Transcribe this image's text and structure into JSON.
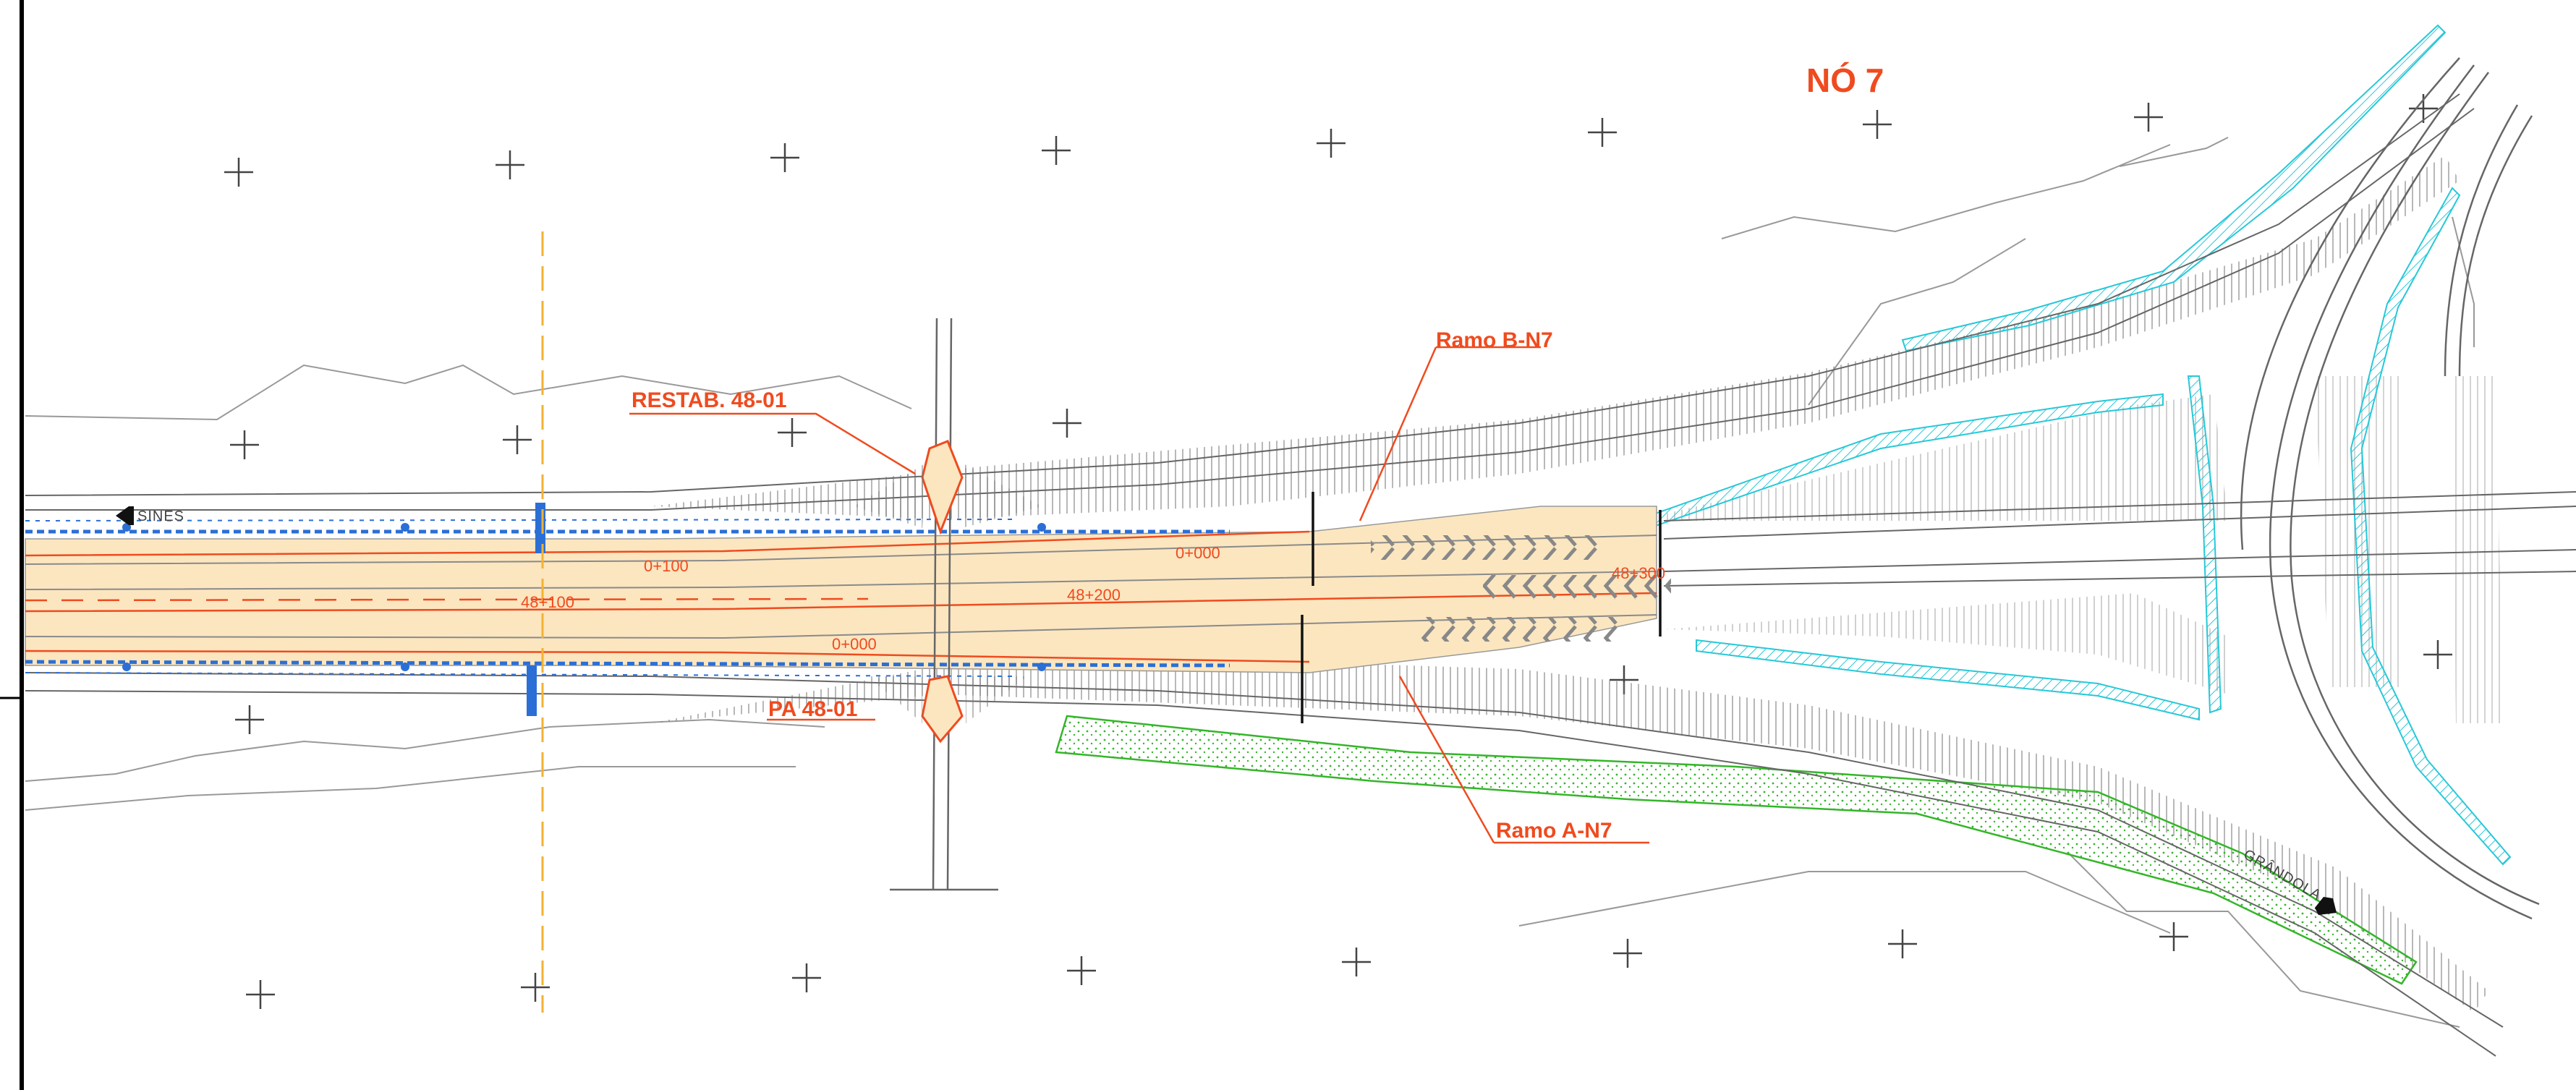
{
  "drawing": {
    "title": "NÓ 7",
    "callouts": {
      "ramo_b": "Ramo B-N7",
      "ramo_a": "Ramo A-N7",
      "restab": "RESTAB. 48-01",
      "pa": "PA 48-01"
    },
    "chainages": {
      "km_0_100": "0+100",
      "km_0_000_top": "0+000",
      "km_48_200": "48+200",
      "km_48_300": "48+300",
      "km_48_100": "48+100",
      "km_0_000_bottom": "0+000"
    },
    "directions": {
      "west": "SINES",
      "east": "GRÂNDOLA"
    },
    "colors": {
      "annotation": "#ef4b1f",
      "linework": "#6d6d6d",
      "pavement_fill": "#fbe6c0",
      "drainage_blue": "#2b6fd6",
      "cyan_hatch": "#27c8d8",
      "green_area": "#35b52a",
      "axis_yellow": "#f3b233"
    }
  }
}
